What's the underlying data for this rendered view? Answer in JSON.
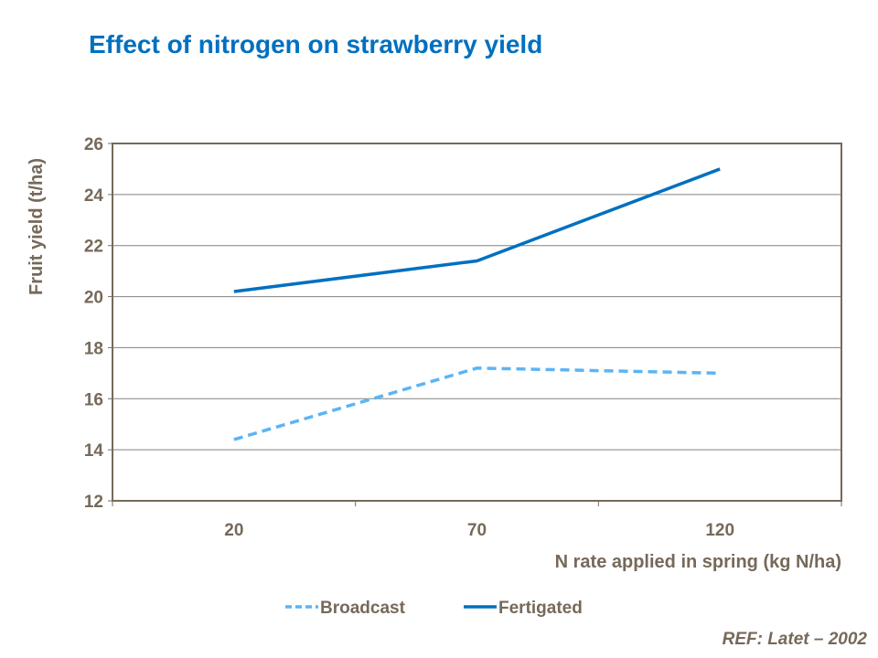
{
  "chart_data": {
    "type": "line",
    "title": "Effect of nitrogen on strawberry yield",
    "xlabel": "N rate applied in spring (kg N/ha)",
    "ylabel": "Fruit yield (t/ha)",
    "categories": [
      "20",
      "70",
      "120"
    ],
    "ylim": [
      12,
      26
    ],
    "yticks": [
      12,
      14,
      16,
      18,
      20,
      22,
      24,
      26
    ],
    "grid": true,
    "legend": "bottom",
    "series": [
      {
        "name": "Broadcast",
        "values": [
          14.4,
          17.2,
          17.0
        ],
        "color": "#5bb4f5",
        "style": "dashed"
      },
      {
        "name": "Fertigated",
        "values": [
          20.2,
          21.4,
          25.0
        ],
        "color": "#0070c0",
        "style": "solid"
      }
    ]
  },
  "reference": "REF:  Latet – 2002",
  "colors": {
    "title": "#0070c0",
    "text": "#76695a",
    "axis": "#76695a"
  }
}
